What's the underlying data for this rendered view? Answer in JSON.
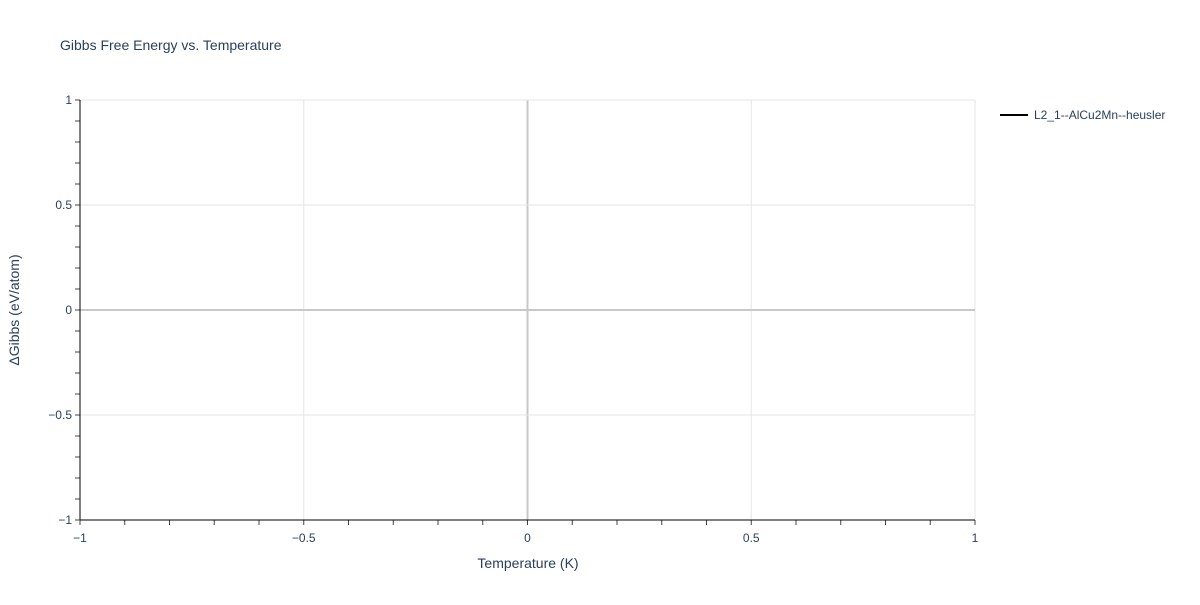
{
  "chart_data": {
    "type": "line",
    "title": "Gibbs Free Energy vs. Temperature",
    "xlabel": "Temperature (K)",
    "ylabel": "ΔGibbs (eV/atom)",
    "xlim": [
      -1,
      1
    ],
    "ylim": [
      -1,
      1
    ],
    "xticks": [
      -1,
      -0.5,
      0,
      0.5,
      1
    ],
    "yticks": [
      -1,
      -0.5,
      0,
      0.5,
      1
    ],
    "xtick_labels": [
      "−1",
      "−0.5",
      "0",
      "0.5",
      "1"
    ],
    "ytick_labels": [
      "−1",
      "−0.5",
      "0",
      "0.5",
      "1"
    ],
    "grid": true,
    "legend_position": "top-right",
    "series": [
      {
        "name": "L2_1--AlCu2Mn--heusler",
        "color": "#000000",
        "x": [],
        "y": []
      }
    ]
  }
}
